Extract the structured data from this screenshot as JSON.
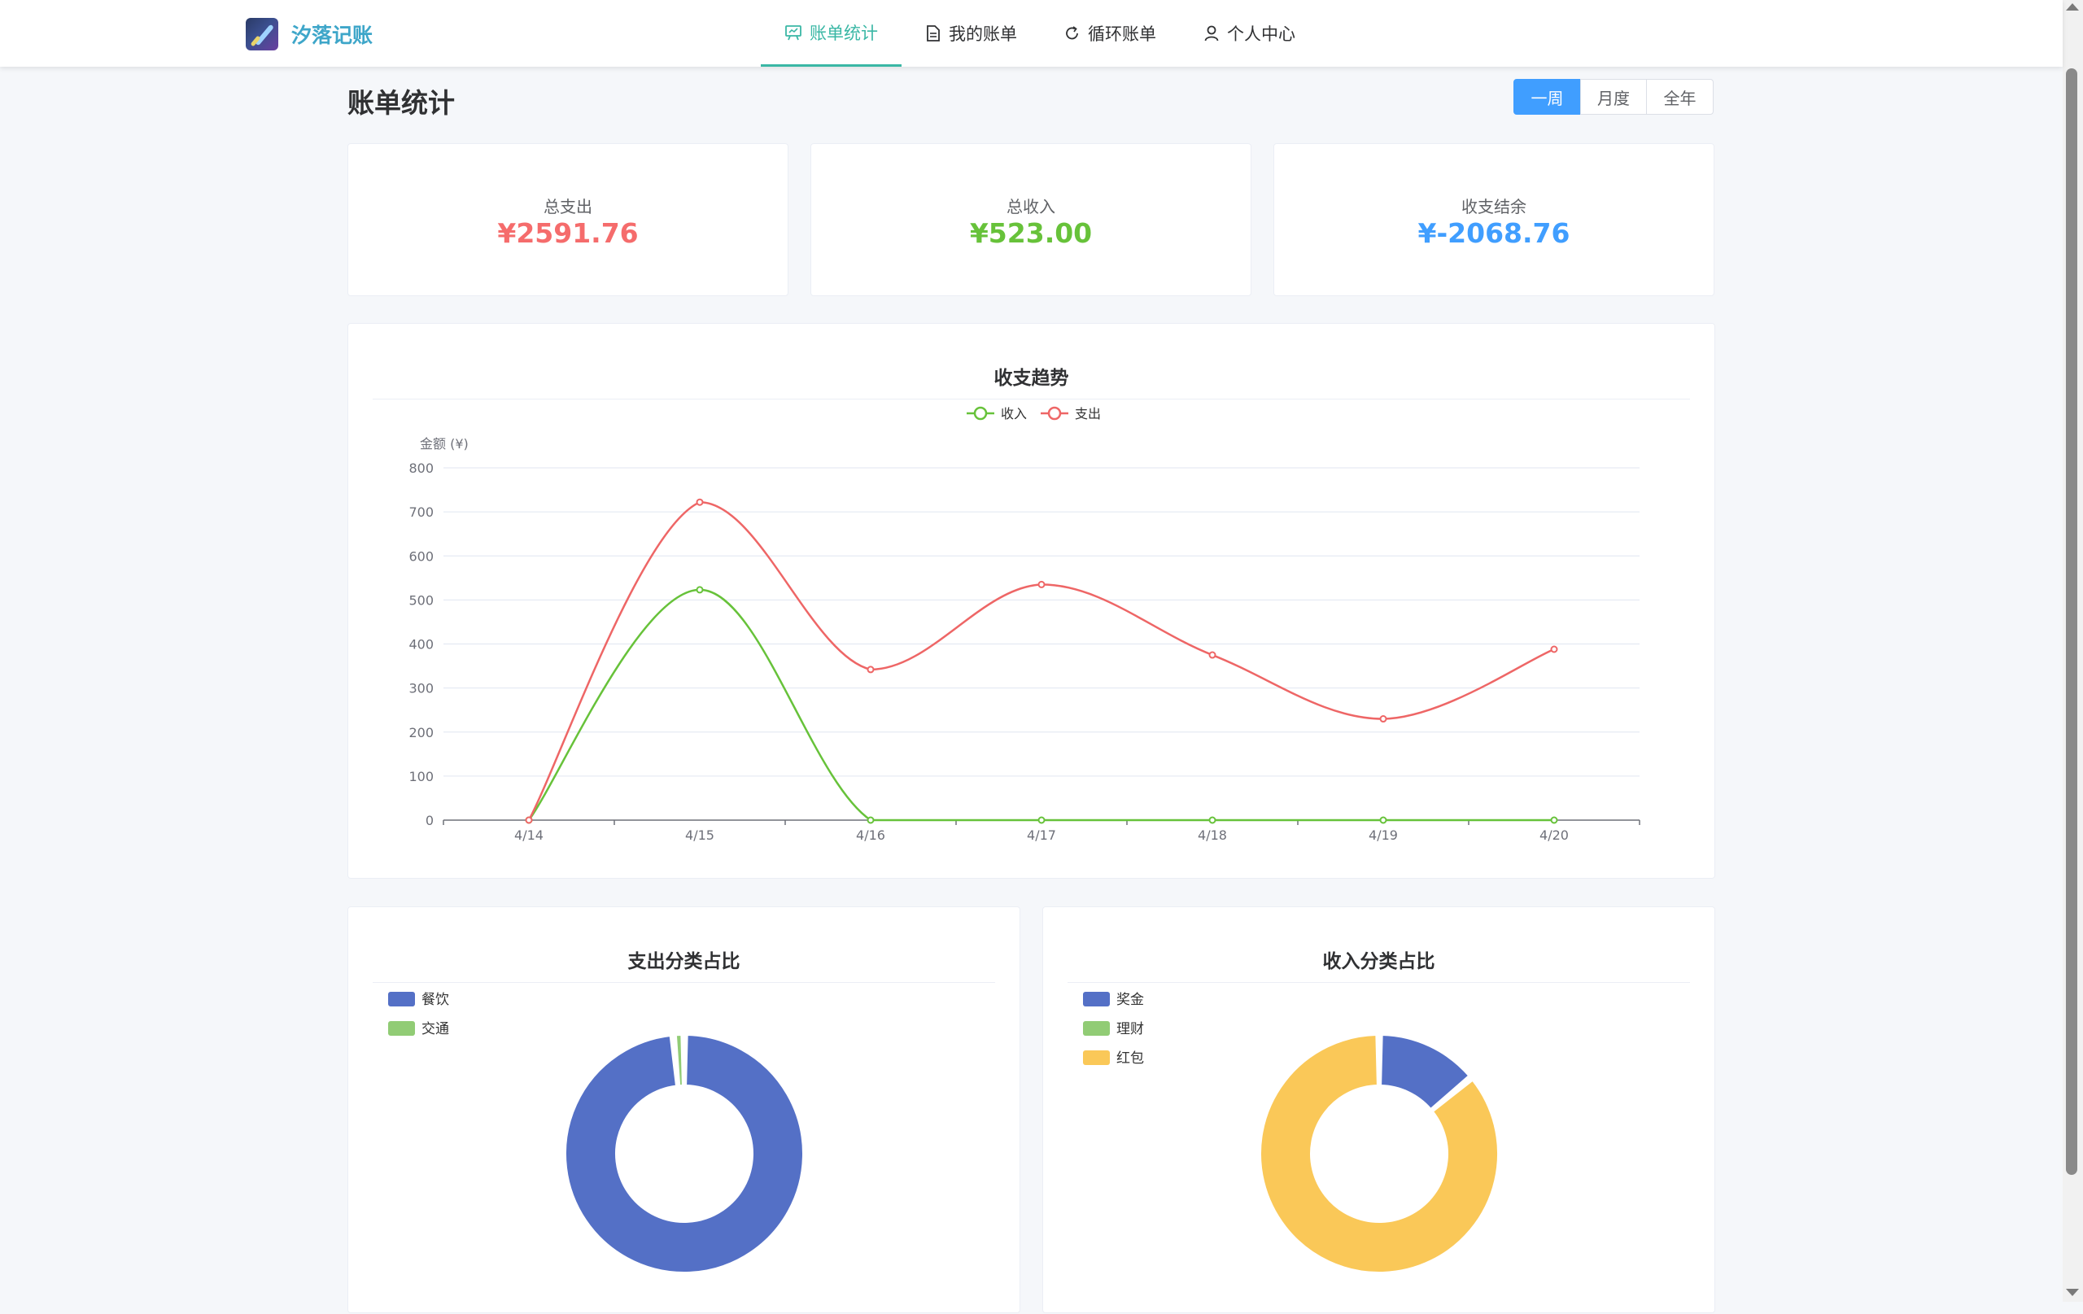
{
  "app": {
    "name": "汐落记账"
  },
  "nav": {
    "items": [
      {
        "label": "账单统计",
        "icon": "chart-board-icon",
        "active": true
      },
      {
        "label": "我的账单",
        "icon": "document-icon",
        "active": false
      },
      {
        "label": "循环账单",
        "icon": "refresh-icon",
        "active": false
      },
      {
        "label": "个人中心",
        "icon": "user-icon",
        "active": false
      }
    ]
  },
  "page": {
    "title": "账单统计"
  },
  "range": {
    "options": [
      "一周",
      "月度",
      "全年"
    ],
    "selected": "一周"
  },
  "stats": [
    {
      "label": "总支出",
      "value": "¥2591.76",
      "color": "#f56c6c"
    },
    {
      "label": "总收入",
      "value": "¥523.00",
      "color": "#67c23a"
    },
    {
      "label": "收支结余",
      "value": "¥-2068.76",
      "color": "#409eff"
    }
  ],
  "colors": {
    "income": "#67c23a",
    "expense": "#ee6666",
    "accent": "#409eff",
    "nav_active": "#3ab7a5"
  },
  "chart_data": [
    {
      "type": "line",
      "title": "收支趋势",
      "ylabel": "金额 (¥)",
      "xlabel": "",
      "ylim": [
        0,
        800
      ],
      "yticks": [
        0,
        100,
        200,
        300,
        400,
        500,
        600,
        700,
        800
      ],
      "categories": [
        "4/14",
        "4/15",
        "4/16",
        "4/17",
        "4/18",
        "4/19",
        "4/20"
      ],
      "series": [
        {
          "name": "收入",
          "color": "#67c23a",
          "values": [
            0,
            523,
            0,
            0,
            0,
            0,
            0
          ]
        },
        {
          "name": "支出",
          "color": "#ee6666",
          "values": [
            0,
            722,
            342,
            535,
            375,
            230,
            388
          ]
        }
      ],
      "smooth": true,
      "grid": true,
      "legend": "top-center"
    },
    {
      "type": "pie",
      "title": "支出分类占比",
      "donut": true,
      "legend": "top-left",
      "slices": [
        {
          "name": "餐饮",
          "value": 98.5,
          "color": "#5470c6"
        },
        {
          "name": "交通",
          "value": 1.5,
          "color": "#91cc75"
        }
      ]
    },
    {
      "type": "pie",
      "title": "收入分类占比",
      "donut": true,
      "legend": "top-left",
      "slices": [
        {
          "name": "奖金",
          "value": 14,
          "color": "#5470c6"
        },
        {
          "name": "理财",
          "value": 0,
          "color": "#91cc75"
        },
        {
          "name": "红包",
          "value": 86,
          "color": "#fac858"
        }
      ]
    }
  ]
}
